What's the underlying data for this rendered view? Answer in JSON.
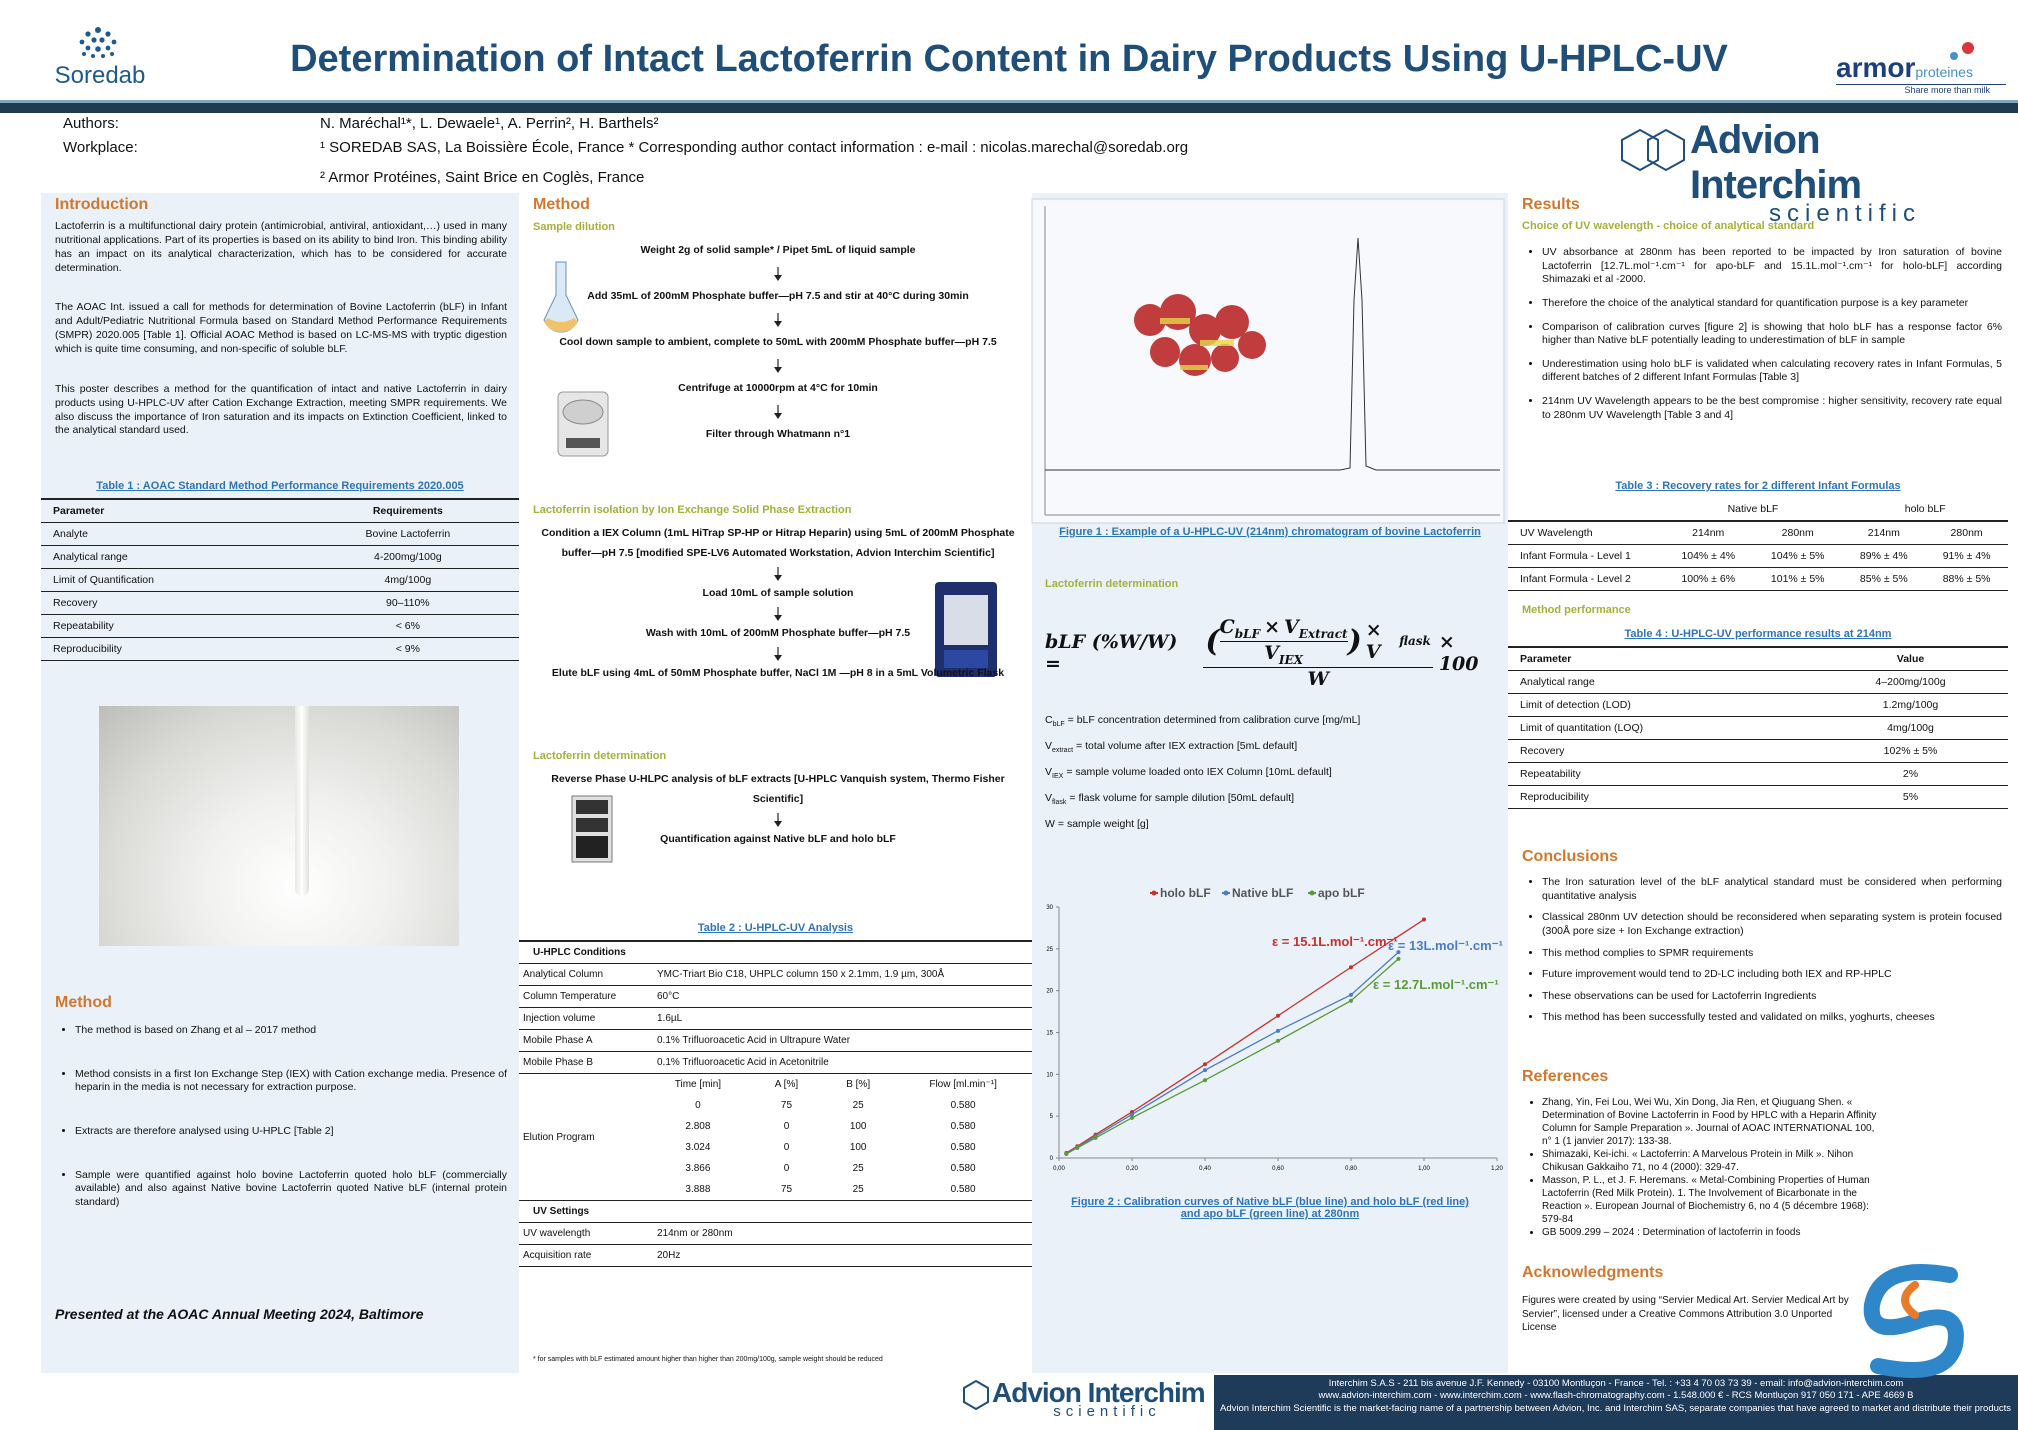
{
  "header": {
    "title": "Determination of Intact Lactoferrin Content in Dairy Products Using U-HPLC-UV",
    "logo_left": "Soredab",
    "logo_right": "armor",
    "logo_right_tail": "proteines",
    "logo_right_tag": "Share more than milk"
  },
  "authors": {
    "label": "Authors:",
    "names": "N. Maréchal¹*, L. Dewaele¹, A. Perrin², H. Barthels²",
    "workplace_label": "Workplace:",
    "affiliations": [
      "¹ SOREDAB SAS, La Boissière École, France * Corresponding author contact information : e-mail : nicolas.marechal@soredab.org",
      "² Armor Protéines, Saint Brice en Coglès, France"
    ]
  },
  "sponsor": {
    "name": "Advion Interchim",
    "tag": "scientific"
  },
  "introduction": {
    "heading": "Introduction",
    "paragraphs": [
      "Lactoferrin is a multifunctional dairy protein (antimicrobial, antiviral, antioxidant,…) used in many nutritional applications. Part of its properties is based on its ability to bind Iron. This binding ability has an impact on its analytical characterization, which has to be considered for accurate determination.",
      "The AOAC Int. issued a call for methods for determination of Bovine Lactoferrin (bLF) in Infant and Adult/Pediatric Nutritional Formula based on Standard Method Performance Requirements (SMPR) 2020.005 [Table 1]. Official AOAC Method is based on LC-MS-MS with tryptic digestion which is quite time consuming, and non-specific of soluble bLF.",
      "This poster describes a method for the quantification of intact and native Lactoferrin in dairy products using U-HPLC-UV after Cation Exchange Extraction, meeting SMPR requirements. We also discuss the importance of Iron saturation and its impacts on Extinction Coefficient, linked to the analytical standard used."
    ]
  },
  "table1": {
    "caption": "Table 1 : AOAC Standard Method Performance Requirements 2020.005",
    "header": [
      "Parameter",
      "Requirements"
    ],
    "rows": [
      [
        "Analyte",
        "Bovine Lactoferrin"
      ],
      [
        "Analytical range",
        "4-200mg/100g"
      ],
      [
        "Limit of Quantification",
        "4mg/100g"
      ],
      [
        "Recovery",
        "90–110%"
      ],
      [
        "Repeatability",
        "< 6%"
      ],
      [
        "Reproducibility",
        "< 9%"
      ]
    ]
  },
  "method_summary": {
    "heading": "Method",
    "items": [
      "The method is based on Zhang et al – 2017 method",
      "Method consists in a first Ion Exchange Step (IEX) with Cation exchange media. Presence of heparin in the media is not necessary for extraction purpose.",
      "Extracts are therefore analysed using U-HPLC [Table 2]",
      "Sample were quantified against holo bovine Lactoferrin quoted holo bLF (commercially available) and also against Native bovine Lactoferrin quoted Native bLF (internal protein standard)"
    ]
  },
  "presented": "Presented at the AOAC Annual Meeting 2024, Baltimore",
  "method": {
    "heading": "Method",
    "sample_dilution": {
      "heading": "Sample dilution",
      "steps": [
        "Weight 2g of solid sample* / Pipet 5mL of liquid sample",
        "Add 35mL of 200mM Phosphate buffer—pH 7.5 and stir at 40°C during 30min",
        "Cool down sample to ambient, complete to 50mL with 200mM Phosphate buffer—pH 7.5",
        "Centrifuge at 10000rpm at 4°C for 10min",
        "Filter through Whatmann n°1"
      ]
    },
    "isolation": {
      "heading": "Lactoferrin isolation by Ion Exchange Solid Phase Extraction",
      "steps": [
        "Condition a IEX Column (1mL HiTrap SP-HP or Hitrap Heparin) using 5mL of 200mM Phosphate buffer—pH 7.5 [modified SPE-LV6 Automated Workstation, Advion Interchim Scientific]",
        "Load 10mL of sample solution",
        "Wash with 10mL of 200mM Phosphate buffer—pH 7.5",
        "Elute bLF using 4mL of 50mM Phosphate buffer, NaCl 1M —pH 8 in a 5mL Volumetric Flask"
      ]
    },
    "determination": {
      "heading": "Lactoferrin determination",
      "steps": [
        "Reverse Phase U-HLPC analysis of bLF extracts [U-HPLC Vanquish system, Thermo Fisher Scientific]",
        "Quantification against Native bLF and holo bLF"
      ]
    }
  },
  "table2": {
    "caption": "Table 2 : U-HPLC-UV Analysis",
    "conditions_heading": "U-HPLC Conditions",
    "conditions": [
      [
        "Analytical Column",
        "YMC-Triart Bio C18, UHPLC column 150 x 2.1mm, 1.9 µm, 300Å"
      ],
      [
        "Column Temperature",
        "60°C"
      ],
      [
        "Injection volume",
        "1.6µL"
      ],
      [
        "Mobile Phase A",
        "0.1% Trifluoroacetic Acid in Ultrapure Water"
      ],
      [
        "Mobile Phase B",
        "0.1% Trifluoroacetic Acid in Acetonitrile"
      ]
    ],
    "elution_label": "Elution Program",
    "elution_header": [
      "Time [min]",
      "A [%]",
      "B [%]",
      "Flow [ml.min⁻¹]"
    ],
    "elution_rows": [
      [
        "0",
        "75",
        "25",
        "0.580"
      ],
      [
        "2.808",
        "0",
        "100",
        "0.580"
      ],
      [
        "3.024",
        "0",
        "100",
        "0.580"
      ],
      [
        "3.866",
        "0",
        "25",
        "0.580"
      ],
      [
        "3.888",
        "75",
        "25",
        "0.580"
      ]
    ],
    "uv_heading": "UV Settings",
    "uv": [
      [
        "UV wavelength",
        "214nm or 280nm"
      ],
      [
        "Acquisition rate",
        "20Hz"
      ]
    ]
  },
  "footnote": "* for samples with bLF estimated amount higher than higher than 200mg/100g, sample weight should be reduced",
  "figure1": {
    "caption": "Figure 1 : Example of a U-HPLC-UV (214nm) chromatogram of bovine Lactoferrin"
  },
  "determination": {
    "heading": "Lactoferrin determination",
    "formula": {
      "lhs": "bLF (%W/W) =",
      "open": "(",
      "c": "C",
      "c_sub": "bLF",
      "times1": "×",
      "v1": "V",
      "v1_sub": "Extract",
      "v2": "V",
      "v2_sub": "IEX",
      "close": ")",
      "times2": "× V",
      "times2_sub": "flask",
      "den": "W",
      "tail": "× 100"
    },
    "definitions": [
      {
        "sym": "C",
        "sub": "bLF",
        "text": "= bLF concentration determined from calibration curve [mg/mL]"
      },
      {
        "sym": "V",
        "sub": "extract",
        "text": "= total volume after IEX extraction [5mL default]"
      },
      {
        "sym": "V",
        "sub": "IEX",
        "text": "= sample volume loaded onto IEX Column [10mL default]"
      },
      {
        "sym": "V",
        "sub": "flask",
        "text": "= flask volume for sample dilution [50mL default]"
      },
      {
        "sym": "W",
        "text": "= sample weight [g]"
      }
    ]
  },
  "chart_data": {
    "type": "line",
    "xlim": [
      0,
      1.2
    ],
    "ylim": [
      0,
      30
    ],
    "xticks": [
      {
        "value": 0,
        "label": "0,00"
      },
      {
        "value": 0.2,
        "label": "0,20"
      },
      {
        "value": 0.4,
        "label": "0,40"
      },
      {
        "value": 0.6,
        "label": "0,60"
      },
      {
        "value": 0.8,
        "label": "0,80"
      },
      {
        "value": 1.0,
        "label": "1,00"
      },
      {
        "value": 1.2,
        "label": "1,20"
      }
    ],
    "yticks": [
      0,
      5,
      10,
      15,
      20,
      25,
      30
    ],
    "grid": false,
    "legend": "top",
    "series": [
      {
        "name": "holo bLF",
        "color": "#c8312b",
        "x": [
          0.02,
          0.05,
          0.1,
          0.2,
          0.4,
          0.6,
          0.8,
          1.0
        ],
        "values": [
          0.6,
          1.4,
          2.8,
          5.5,
          11.2,
          17.0,
          22.8,
          28.5
        ]
      },
      {
        "name": "Native bLF",
        "color": "#4a7cc9",
        "x": [
          0.02,
          0.05,
          0.1,
          0.2,
          0.4,
          0.6,
          0.8,
          0.93
        ],
        "values": [
          0.5,
          1.3,
          2.6,
          5.2,
          10.5,
          15.2,
          19.5,
          24.6
        ]
      },
      {
        "name": "apo bLF",
        "color": "#5a9a38",
        "x": [
          0.02,
          0.05,
          0.1,
          0.2,
          0.4,
          0.6,
          0.8,
          0.93
        ],
        "values": [
          0.5,
          1.2,
          2.4,
          4.8,
          9.3,
          14.0,
          18.8,
          23.8
        ]
      }
    ],
    "annotations": [
      {
        "text": "ε = 15.1L.mol⁻¹.cm⁻¹",
        "color": "#c8312b"
      },
      {
        "text": "ε = 13L.mol⁻¹.cm⁻¹",
        "color": "#4a7cc9"
      },
      {
        "text": "ε = 12.7L.mol⁻¹.cm⁻¹",
        "color": "#5a9a38"
      }
    ],
    "caption": "Figure 2 : Calibration curves of Native bLF (blue line) and holo bLF (red line) and apo bLF (green line) at 280nm"
  },
  "results": {
    "heading": "Results",
    "subheading": "Choice of UV wavelength - choice of analytical standard",
    "bullets": [
      "UV absorbance at 280nm has been reported to be impacted by Iron saturation of bovine Lactoferrin [12.7L.mol⁻¹.cm⁻¹ for apo-bLF and 15.1L.mol⁻¹.cm⁻¹ for holo-bLF] according Shimazaki et al -2000.",
      "Therefore the choice of the analytical standard for quantification purpose is a key parameter",
      "Comparison of calibration curves [figure 2] is showing that holo bLF has a response factor 6% higher than Native bLF potentially leading to underestimation of bLF in sample",
      "Underestimation using holo bLF is validated when calculating recovery rates in Infant Formulas, 5 different batches of 2 different Infant Formulas [Table 3]",
      "214nm UV Wavelength appears to be the best compromise : higher sensitivity, recovery rate equal to 280nm UV Wavelength [Table 3 and 4]"
    ],
    "performance_heading": "Method performance"
  },
  "table3": {
    "caption": "Table 3 : Recovery rates for 2 different Infant Formulas",
    "groups": [
      "Native bLF",
      "holo bLF"
    ],
    "header": [
      "UV Wavelength",
      "214nm",
      "280nm",
      "214nm",
      "280nm"
    ],
    "rows": [
      [
        "Infant Formula - Level 1",
        "104% ± 4%",
        "104% ± 5%",
        "89% ± 4%",
        "91% ± 4%"
      ],
      [
        "Infant Formula - Level 2",
        "100% ± 6%",
        "101% ± 5%",
        "85% ± 5%",
        "88% ± 5%"
      ]
    ]
  },
  "table4": {
    "caption": "Table 4 : U-HPLC-UV performance results at 214nm",
    "header": [
      "Parameter",
      "Value"
    ],
    "rows": [
      [
        "Analytical range",
        "4–200mg/100g"
      ],
      [
        "Limit of detection (LOD)",
        "1.2mg/100g"
      ],
      [
        "Limit of quantitation (LOQ)",
        "4mg/100g"
      ],
      [
        "Recovery",
        "102% ± 5%"
      ],
      [
        "Repeatability",
        "2%"
      ],
      [
        "Reproducibility",
        "5%"
      ]
    ]
  },
  "conclusions": {
    "heading": "Conclusions",
    "bullets": [
      "The Iron saturation level of the bLF analytical standard must be considered when performing quantitative analysis",
      "Classical 280nm UV detection should be reconsidered when separating system is protein focused (300Å pore size + Ion Exchange extraction)",
      "This method complies to SPMR requirements",
      "Future improvement would tend to 2D-LC including both IEX and RP-HPLC",
      "These observations can be used for Lactoferrin Ingredients",
      "This method has been successfully tested and validated on milks, yoghurts, cheeses"
    ]
  },
  "references": {
    "heading": "References",
    "items": [
      "Zhang, Yin, Fei Lou, Wei Wu, Xin Dong, Jia Ren, et Qiuguang Shen. « Determination of Bovine Lactoferrin in Food by HPLC with a Heparin Affinity Column for Sample Preparation ». Journal of AOAC INTERNATIONAL 100, n° 1 (1 janvier 2017): 133-38.",
      "Shimazaki, Kei-ichi. « Lactoferrin: A Marvelous Protein in Milk ». Nihon Chikusan Gakkaiho 71, no 4 (2000): 329-47.",
      "Masson, P. L., et J. F. Heremans. « Metal-Combining Properties of Human Lactoferrin (Red Milk Protein). 1. The Involvement of Bicarbonate in the Reaction ». European Journal of Biochemistry 6, no 4 (5 décembre 1968): 579-84",
      "GB 5009.299 – 2024 : Determination of lactoferrin in foods"
    ]
  },
  "acknowledgments": {
    "heading": "Acknowledgments",
    "text": "Figures were created by using “Servier Medical Art. Servier Medical Art by Servier”, licensed under a Creative Commons Attribution 3.0 Unported License"
  },
  "footer": {
    "lines": [
      "Interchim S.A.S - 211 bis avenue J.F. Kennedy - 03100 Montluçon - France - Tel. : +33 4 70 03 73 39 - email: info@advion-interchim.com",
      "www.advion-interchim.com - www.interchim.com - www.flash-chromatography.com - 1.548.000 € - RCS Montluçon 917 050 171 - APE 4669 B",
      "Advion Interchim Scientific is the market-facing name of a partnership between Advion, Inc. and Interchim SAS, separate companies that have agreed to market and distribute their products together"
    ]
  }
}
